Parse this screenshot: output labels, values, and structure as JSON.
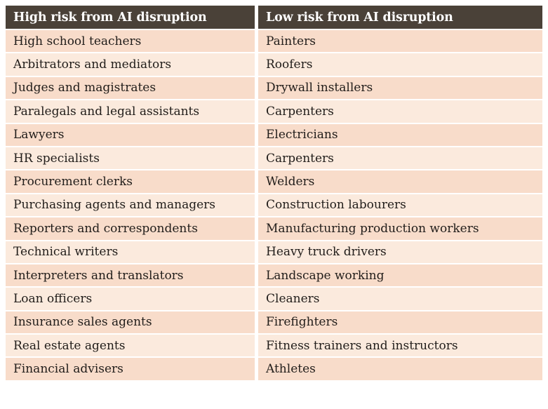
{
  "chart_data": {
    "type": "table",
    "columns": [
      "High risk from AI disruption",
      "Low risk from AI disruption"
    ],
    "rows": [
      [
        "High school teachers",
        "Painters"
      ],
      [
        "Arbitrators and mediators",
        "Roofers"
      ],
      [
        "Judges and magistrates",
        "Drywall installers"
      ],
      [
        "Paralegals and legal assistants",
        "Carpenters"
      ],
      [
        "Lawyers",
        "Electricians"
      ],
      [
        "HR specialists",
        "Carpenters"
      ],
      [
        "Procurement clerks",
        "Welders"
      ],
      [
        "Purchasing agents and managers",
        "Construction labourers"
      ],
      [
        "Reporters and correspondents",
        "Manufacturing production workers"
      ],
      [
        "Technical writers",
        "Heavy truck drivers"
      ],
      [
        "Interpreters and translators",
        "Landscape working"
      ],
      [
        "Loan officers",
        "Cleaners"
      ],
      [
        "Insurance sales agents",
        "Firefighters"
      ],
      [
        "Real estate agents",
        "Fitness trainers and instructors"
      ],
      [
        "Financial advisers",
        "Athletes"
      ]
    ],
    "layout": {
      "row_shading": "alternating, first row darker",
      "legend": "none",
      "grid": "white separators between rows and columns"
    }
  },
  "colors": {
    "header_bg": "#4a4138",
    "header_text": "#ffffff",
    "row_dark": "#f8dcca",
    "row_light": "#fbeadd",
    "body_text": "#211d1a",
    "separator": "#ffffff"
  }
}
